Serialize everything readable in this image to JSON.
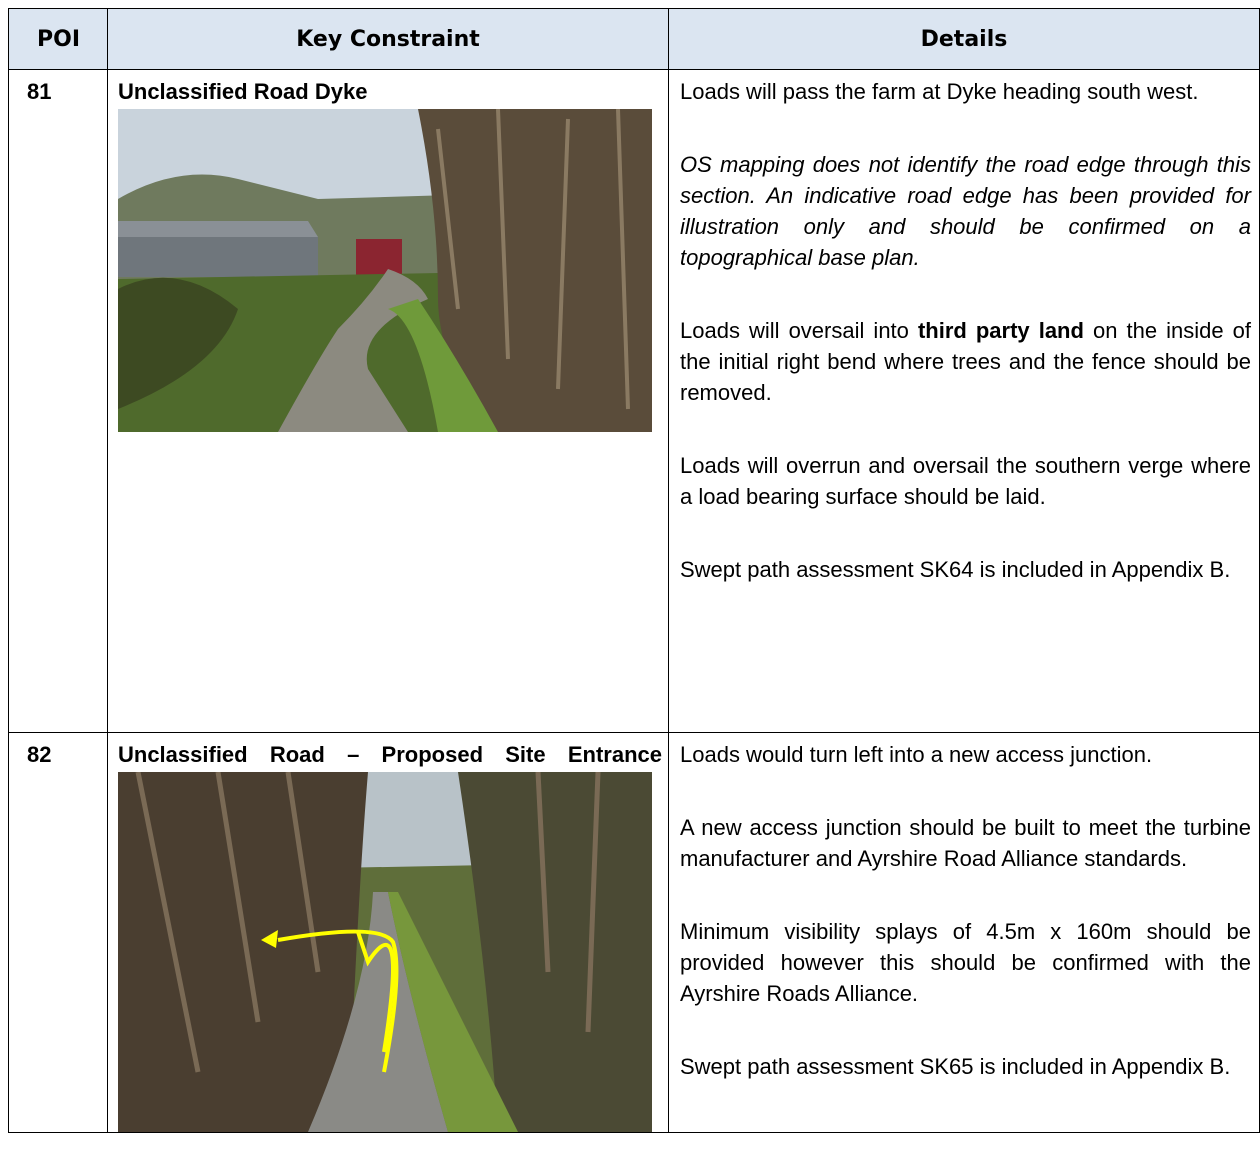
{
  "table": {
    "headers": [
      "POI",
      "Key Constraint",
      "Details"
    ],
    "rows": [
      {
        "poi": "81",
        "constraint": "Unclassified Road Dyke",
        "details": [
          {
            "parts": [
              "Loads will pass the farm at Dyke heading south west."
            ]
          },
          {
            "italic": true,
            "parts": [
              "OS mapping does not identify the road edge through this section.  An indicative road edge has been provided for illustration only and should be confirmed on a topographical base plan."
            ]
          },
          {
            "parts": [
              "Loads will oversail into ",
              "third party land",
              " on the inside of the initial right bend where trees and the fence should be removed."
            ],
            "bold_part": 1
          },
          {
            "parts": [
              "Loads will overrun and oversail the southern verge where a load bearing surface should be laid."
            ]
          },
          {
            "parts": [
              "Swept path assessment SK64 is included in Appendix B."
            ]
          }
        ]
      },
      {
        "poi": "82",
        "constraint": "Unclassified Road – Proposed Site Entrance",
        "details": [
          {
            "parts": [
              "Loads would turn left into a new access junction."
            ]
          },
          {
            "parts": [
              "A new access junction should be built to meet the turbine manufacturer and Ayrshire Road Alliance standards."
            ]
          },
          {
            "parts": [
              "Minimum visibility splays of 4.5m x 160m should be provided however this should be confirmed with the Ayrshire Roads Alliance."
            ]
          },
          {
            "parts": [
              "Swept path assessment SK65 is included in Appendix B."
            ]
          }
        ]
      }
    ]
  }
}
